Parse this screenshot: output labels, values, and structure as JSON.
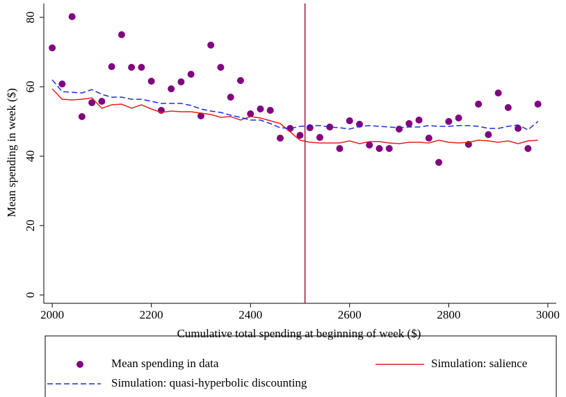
{
  "chart_data": {
    "type": "scatter",
    "x_label": "Cumulative total spending at beginning of week ($)",
    "y_label": "Mean spending in week ($)",
    "xlim": [
      1983,
      3017
    ],
    "ylim": [
      -2.4,
      84
    ],
    "xticks": [
      2000,
      2200,
      2400,
      2600,
      2800,
      3000
    ],
    "yticks": [
      0,
      20,
      40,
      60,
      80
    ],
    "reference_line_x": 2510,
    "reference_line_color": "#a0103a",
    "legend": "bottom",
    "x": [
      2000,
      2020,
      2040,
      2060,
      2080,
      2100,
      2120,
      2140,
      2160,
      2180,
      2200,
      2220,
      2240,
      2260,
      2280,
      2300,
      2320,
      2340,
      2360,
      2380,
      2400,
      2420,
      2440,
      2460,
      2480,
      2500,
      2520,
      2540,
      2560,
      2580,
      2600,
      2620,
      2640,
      2660,
      2680,
      2700,
      2720,
      2740,
      2760,
      2780,
      2800,
      2820,
      2840,
      2860,
      2880,
      2900,
      2920,
      2940,
      2960,
      2980
    ],
    "series": [
      {
        "name": "Mean spending in data",
        "style": "markers",
        "color": "#800080",
        "values": [
          71.2,
          60.8,
          80.2,
          51.4,
          55.4,
          55.8,
          65.8,
          75,
          65.6,
          65.6,
          61.6,
          53.2,
          59.4,
          61.4,
          63.6,
          51.6,
          72,
          65.6,
          57,
          61.8,
          52.2,
          53.6,
          53.2,
          45.2,
          48,
          46,
          48.2,
          45.4,
          48.4,
          42.2,
          50.2,
          49.2,
          43.2,
          42.2,
          42.2,
          47.8,
          49.4,
          50.4,
          45.2,
          38.2,
          50,
          51,
          43.4,
          55,
          46.2,
          58.2,
          54,
          48,
          42.2,
          55
        ]
      },
      {
        "name": "Simulation: salience",
        "style": "solid",
        "color": "#e0201c",
        "values": [
          59.4,
          56.4,
          56.2,
          56.4,
          56.8,
          53.8,
          54.8,
          55,
          53.8,
          54.8,
          53.6,
          52.6,
          53,
          52.8,
          52.8,
          52.4,
          52,
          51.2,
          51.4,
          50.4,
          51.4,
          51,
          50.2,
          49.4,
          47,
          44.6,
          44,
          43.8,
          43.8,
          43.8,
          44.4,
          43.6,
          44.2,
          44.2,
          43.8,
          43.6,
          44,
          44,
          43.8,
          44.6,
          44,
          43.8,
          44,
          44.6,
          44.4,
          44,
          44.4,
          43.6,
          44.4,
          44.6
        ]
      },
      {
        "name": "Simulation: quasi-hyperbolic discounting",
        "style": "dashed",
        "color": "#1a2ed8",
        "values": [
          62,
          58.6,
          58.4,
          58.2,
          59.2,
          57.8,
          57,
          57,
          56.4,
          56.4,
          55.8,
          55.2,
          55.2,
          55.2,
          54.6,
          53.6,
          53,
          52.6,
          51.8,
          51.2,
          50.4,
          50.4,
          49.4,
          48.2,
          48,
          48.6,
          48.8,
          48.8,
          48.4,
          48.2,
          47.8,
          48.6,
          48.8,
          48.6,
          48.4,
          48.2,
          48.4,
          48.4,
          48.8,
          48.6,
          48.6,
          48.8,
          48.8,
          48.6,
          48,
          48,
          48.6,
          49,
          47.6,
          50
        ]
      }
    ]
  }
}
